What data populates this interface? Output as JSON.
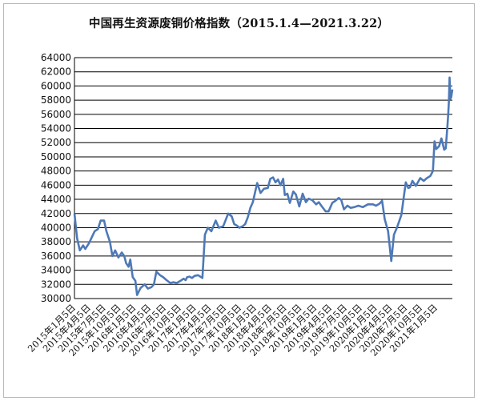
{
  "chart_data": {
    "type": "line",
    "title": "中国再生资源废铜价格指数（2015.1.4—2021.3.22）",
    "ylim": [
      30000,
      64000
    ],
    "y_ticks": [
      "64000",
      "62000",
      "60000",
      "58000",
      "56000",
      "54000",
      "52000",
      "50000",
      "48000",
      "46000",
      "44000",
      "42000",
      "40000",
      "38000",
      "36000",
      "34000",
      "32000",
      "30000"
    ],
    "x_tick_labels": [
      "2015年1月5日",
      "2015年4月5日",
      "2015年7月5日",
      "2015年10月5日",
      "2016年1月5日",
      "2016年4月5日",
      "2016年7月5日",
      "2016年10月5日",
      "2017年1月5日",
      "2017年4月5日",
      "2017年7月5日",
      "2017年10月5日",
      "2018年1月5日",
      "2018年4月5日",
      "2018年7月5日",
      "2018年10月5日",
      "2019年1月5日",
      "2019年4月5日",
      "2019年7月5日",
      "2019年10月5日",
      "2020年1月5日",
      "2020年4月5日",
      "2020年7月5日",
      "2020年10月5日",
      "2021年1月5日"
    ],
    "grid": "horizontal",
    "series": [
      {
        "color": "#4e79b7",
        "x": [
          "2015-01-04",
          "2015-01-20",
          "2015-02-05",
          "2015-02-25",
          "2015-03-10",
          "2015-04-01",
          "2015-05-05",
          "2015-05-25",
          "2015-06-10",
          "2015-07-01",
          "2015-07-15",
          "2015-08-05",
          "2015-08-20",
          "2015-09-05",
          "2015-09-25",
          "2015-10-15",
          "2015-10-30",
          "2015-11-10",
          "2015-11-25",
          "2015-12-05",
          "2015-12-20",
          "2016-01-05",
          "2016-01-15",
          "2016-02-05",
          "2016-03-01",
          "2016-03-20",
          "2016-04-10",
          "2016-04-25",
          "2016-05-10",
          "2016-06-01",
          "2016-06-20",
          "2016-07-10",
          "2016-08-01",
          "2016-08-20",
          "2016-09-10",
          "2016-10-01",
          "2016-10-20",
          "2016-11-01",
          "2016-11-10",
          "2016-11-25",
          "2016-12-10",
          "2016-12-25",
          "2017-01-15",
          "2017-02-10",
          "2017-02-25",
          "2017-03-15",
          "2017-04-05",
          "2017-05-01",
          "2017-05-20",
          "2017-06-15",
          "2017-07-15",
          "2017-08-05",
          "2017-08-20",
          "2017-09-05",
          "2017-09-20",
          "2017-10-10",
          "2017-10-25",
          "2017-11-10",
          "2017-11-25",
          "2017-12-10",
          "2018-01-05",
          "2018-01-25",
          "2018-02-15",
          "2018-03-10",
          "2018-03-25",
          "2018-04-10",
          "2018-04-25",
          "2018-05-10",
          "2018-05-25",
          "2018-06-10",
          "2018-06-20",
          "2018-07-05",
          "2018-07-20",
          "2018-08-10",
          "2018-08-25",
          "2018-09-15",
          "2018-10-05",
          "2018-10-25",
          "2018-11-10",
          "2018-12-01",
          "2018-12-25",
          "2019-01-10",
          "2019-01-25",
          "2019-02-20",
          "2019-03-10",
          "2019-04-01",
          "2019-04-20",
          "2019-05-10",
          "2019-05-25",
          "2019-06-10",
          "2019-07-01",
          "2019-07-20",
          "2019-08-10",
          "2019-09-05",
          "2019-10-01",
          "2019-11-01",
          "2019-12-01",
          "2019-12-20",
          "2020-01-10",
          "2020-01-25",
          "2020-02-10",
          "2020-03-01",
          "2020-03-20",
          "2020-04-05",
          "2020-04-25",
          "2020-05-20",
          "2020-06-15",
          "2020-06-30",
          "2020-07-10",
          "2020-07-25",
          "2020-08-15",
          "2020-09-10",
          "2020-10-01",
          "2020-10-20",
          "2020-11-10",
          "2020-11-25",
          "2020-12-05",
          "2020-12-15",
          "2021-01-01",
          "2021-01-15",
          "2021-02-01",
          "2021-02-10",
          "2021-02-20",
          "2021-02-25",
          "2021-03-01",
          "2021-03-05",
          "2021-03-10",
          "2021-03-15",
          "2021-03-22"
        ],
        "values": [
          42000,
          38500,
          36800,
          37500,
          37000,
          37800,
          39500,
          39800,
          41000,
          41000,
          39500,
          38000,
          36000,
          36800,
          35800,
          36500,
          36000,
          35000,
          34500,
          35500,
          33000,
          32500,
          30500,
          31500,
          32000,
          31400,
          31600,
          32000,
          33800,
          33300,
          33000,
          32600,
          32200,
          32300,
          32200,
          32500,
          32800,
          32600,
          33000,
          33100,
          32900,
          33200,
          33300,
          32900,
          39000,
          40000,
          39500,
          41000,
          40000,
          40200,
          42000,
          41600,
          40500,
          40300,
          40000,
          40200,
          40500,
          41500,
          42800,
          43600,
          46300,
          44900,
          45500,
          45600,
          46900,
          47100,
          46400,
          46800,
          46000,
          46900,
          44600,
          44800,
          43500,
          45100,
          44700,
          43000,
          44800,
          43600,
          44100,
          43900,
          43300,
          43600,
          43100,
          42300,
          42300,
          43500,
          43800,
          44200,
          43900,
          42600,
          43100,
          42800,
          42900,
          43100,
          42900,
          43300,
          43300,
          43100,
          43400,
          43800,
          41200,
          39500,
          35300,
          39000,
          40100,
          41800,
          46400,
          45600,
          45700,
          46600,
          45900,
          47000,
          46600,
          47000,
          47300,
          48000,
          52200,
          51100,
          51500,
          52600,
          51000,
          51200,
          54300,
          56000,
          57700,
          61200,
          58200,
          58400,
          59500
        ]
      }
    ]
  }
}
